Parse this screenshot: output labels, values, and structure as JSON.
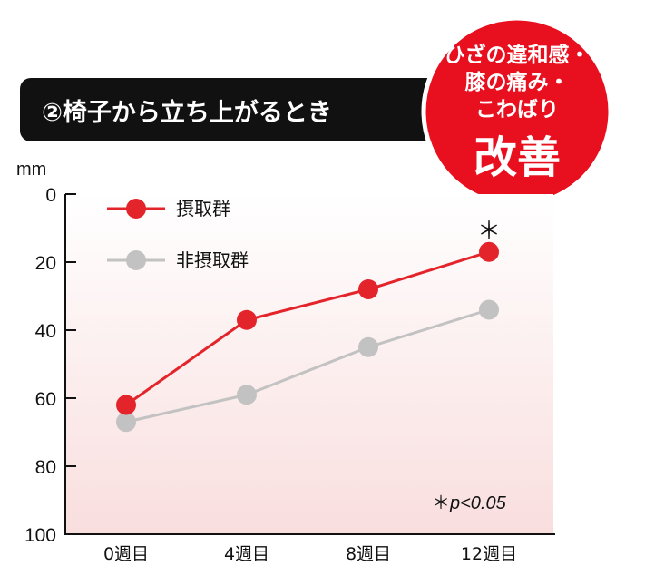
{
  "header": {
    "title": "②椅子から立ち上がるとき"
  },
  "badge": {
    "line1": "ひざの違和感・",
    "line2": "膝の痛み・",
    "line3": "こわばり",
    "line4": "改善",
    "color": "#e8101e"
  },
  "chart_data": {
    "type": "line",
    "unit_label": "mm",
    "categories": [
      "0週目",
      "4週目",
      "8週目",
      "12週目"
    ],
    "ylim": [
      0,
      100
    ],
    "y_inverted": true,
    "yticks": [
      "0",
      "20",
      "40",
      "60",
      "80",
      "100"
    ],
    "series": [
      {
        "name": "摂取群",
        "values": [
          62,
          37,
          28,
          17
        ],
        "color": "#e3242b"
      },
      {
        "name": "非摂取群",
        "values": [
          67,
          59,
          45,
          34
        ],
        "color": "#c2c2c2"
      }
    ],
    "annotation_star": "＊",
    "footnote_mark": "＊",
    "footnote_text": "p<0.05",
    "legend_position": "top-left",
    "grid": false
  }
}
